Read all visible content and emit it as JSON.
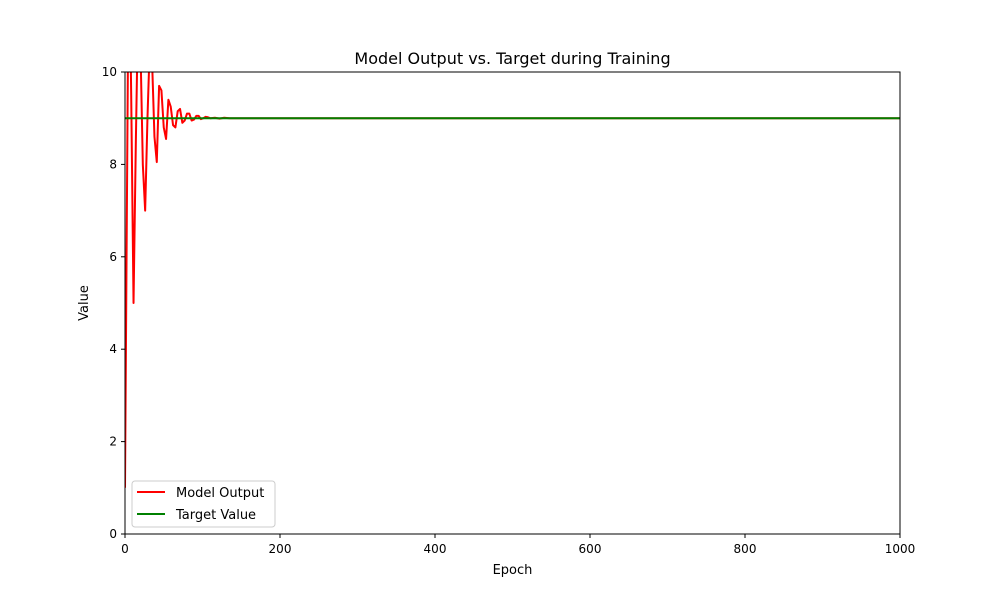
{
  "chart_data": {
    "type": "line",
    "title": "Model Output vs. Target during Training",
    "xlabel": "Epoch",
    "ylabel": "Value",
    "xlim": [
      0,
      1000
    ],
    "ylim": [
      0,
      10
    ],
    "xticks": [
      "0",
      "200",
      "400",
      "600",
      "800",
      "1000"
    ],
    "yticks": [
      "0",
      "2",
      "4",
      "6",
      "8",
      "10"
    ],
    "grid": false,
    "legend_position": "lower-left",
    "series": [
      {
        "name": "Model Output",
        "color": "#ff0000",
        "x": [
          0,
          2,
          4,
          6,
          8,
          11,
          14,
          17,
          20,
          23,
          26,
          29,
          32,
          35,
          38,
          41,
          44,
          47,
          50,
          53,
          56,
          59,
          62,
          65,
          68,
          71,
          74,
          77,
          80,
          83,
          86,
          89,
          92,
          95,
          98,
          101,
          104,
          107,
          110,
          116,
          122,
          128,
          135,
          145,
          160,
          180,
          220,
          300,
          400,
          500,
          600,
          700,
          800,
          900,
          1000
        ],
        "y": [
          1.0,
          6.0,
          10.8,
          12.0,
          9.5,
          5.0,
          8.5,
          11.5,
          10.5,
          8.0,
          7.0,
          9.0,
          10.6,
          10.2,
          8.6,
          8.05,
          9.7,
          9.6,
          8.8,
          8.55,
          9.4,
          9.25,
          8.85,
          8.8,
          9.15,
          9.2,
          8.9,
          8.95,
          9.1,
          9.1,
          8.95,
          8.97,
          9.05,
          9.05,
          8.98,
          9.0,
          9.03,
          9.02,
          9.0,
          9.01,
          8.99,
          9.01,
          9.0,
          9.0,
          9.0,
          9.0,
          9.0,
          9.0,
          9.0,
          9.0,
          9.0,
          9.0,
          9.0,
          9.0,
          9.0
        ]
      },
      {
        "name": "Target Value",
        "color": "#008000",
        "x": [
          0,
          1000
        ],
        "y": [
          9,
          9
        ]
      }
    ]
  }
}
